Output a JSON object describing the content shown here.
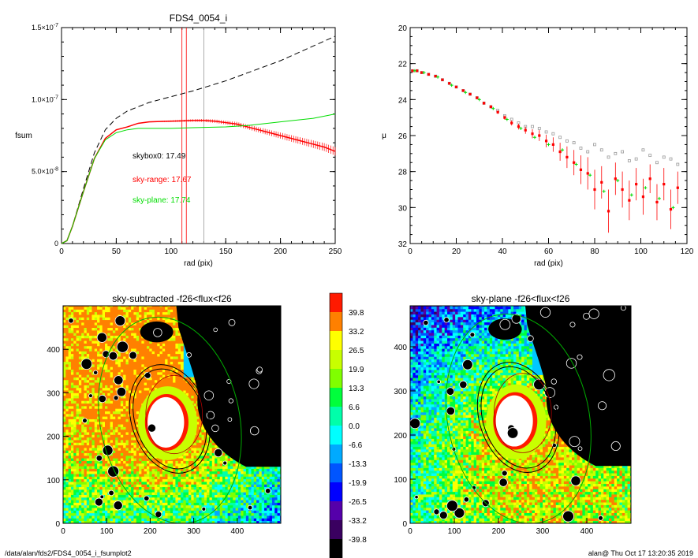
{
  "footer": {
    "left": "/data/alan/fds2/FDS4_0054_i_fsumplot2",
    "right": "alan@  Thu Oct 17 13:20:35 2019"
  },
  "colors": {
    "dashed": "#000000",
    "red": "#ff0000",
    "green": "#00dd00",
    "gray": "#999999"
  },
  "chart_data": [
    {
      "type": "line",
      "title": "FDS4_0054_i",
      "xlabel": "rad (pix)",
      "ylabel": "fsum",
      "xlim": [
        0,
        250
      ],
      "ylim": [
        0,
        1.5e-07
      ],
      "xticks": [
        "0",
        "50",
        "100",
        "150",
        "200",
        "250"
      ],
      "yticks": [
        {
          "mant": "0",
          "exp": ""
        },
        {
          "mant": "5.0×10",
          "exp": "-8"
        },
        {
          "mant": "1.0×10",
          "exp": "-7"
        },
        {
          "mant": "1.5×10",
          "exp": "-7"
        }
      ],
      "ytick_values": [
        0,
        5e-08,
        1e-07,
        1.5e-07
      ],
      "vlines": [
        {
          "x": 110,
          "color": "red"
        },
        {
          "x": 114,
          "color": "red"
        },
        {
          "x": 130,
          "color": "gray"
        }
      ],
      "annotations": [
        {
          "text": "skybox0: 17.49",
          "color": "black"
        },
        {
          "text": "sky-range: 17.67",
          "color": "red"
        },
        {
          "text": "sky-plane: 17.74",
          "color": "green"
        }
      ],
      "series": [
        {
          "style": "dashed",
          "color": "black",
          "x": [
            0,
            5,
            10,
            20,
            30,
            40,
            50,
            60,
            80,
            100,
            120,
            150,
            200,
            250
          ],
          "y": [
            0,
            2e-09,
            1.2e-08,
            3.8e-08,
            6.3e-08,
            7.9e-08,
            8.7e-08,
            9.2e-08,
            9.8e-08,
            1.02e-07,
            1.06e-07,
            1.13e-07,
            1.27e-07,
            1.44e-07
          ]
        },
        {
          "style": "errbar",
          "color": "red",
          "x": [
            0,
            5,
            10,
            20,
            30,
            40,
            50,
            60,
            70,
            80,
            90,
            100,
            110,
            120,
            130,
            140,
            150,
            160,
            170,
            180,
            190,
            200,
            210,
            220,
            230,
            240,
            250
          ],
          "y": [
            0,
            2e-09,
            1.2e-08,
            3.6e-08,
            5.9e-08,
            7.3e-08,
            7.9e-08,
            8.1e-08,
            8.35e-08,
            8.45e-08,
            8.48e-08,
            8.5e-08,
            8.52e-08,
            8.55e-08,
            8.55e-08,
            8.5e-08,
            8.4e-08,
            8.3e-08,
            8.1e-08,
            7.9e-08,
            7.7e-08,
            7.5e-08,
            7.3e-08,
            7.1e-08,
            6.9e-08,
            6.7e-08,
            6.4e-08
          ]
        },
        {
          "style": "solid",
          "color": "green",
          "x": [
            0,
            5,
            10,
            20,
            30,
            40,
            50,
            60,
            70,
            80,
            100,
            120,
            150,
            170,
            200,
            230,
            250
          ],
          "y": [
            0,
            2e-09,
            1.2e-08,
            3.6e-08,
            5.9e-08,
            7.2e-08,
            7.7e-08,
            7.9e-08,
            8e-08,
            8e-08,
            8e-08,
            8.05e-08,
            8.1e-08,
            8.2e-08,
            8.45e-08,
            8.7e-08,
            9e-08
          ]
        }
      ]
    },
    {
      "type": "scatter",
      "xlabel": "rad (pix)",
      "ylabel": "μ",
      "xlim": [
        0,
        120
      ],
      "ylim": [
        32,
        20
      ],
      "xticks": [
        "0",
        "20",
        "40",
        "60",
        "80",
        "100",
        "120"
      ],
      "yticks": [
        "20",
        "22",
        "24",
        "26",
        "28",
        "30",
        "32"
      ],
      "series": [
        {
          "marker": "square-open",
          "color": "gray",
          "x": [
            1,
            3,
            5,
            8,
            11,
            14,
            17,
            20,
            23,
            26,
            29,
            32,
            35,
            38,
            41,
            44,
            47,
            50,
            53,
            56,
            59,
            62,
            65,
            68,
            71,
            74,
            77,
            80,
            83,
            86,
            89,
            92,
            95,
            98,
            101,
            104,
            107,
            110,
            113,
            116
          ],
          "y": [
            22.4,
            22.4,
            22.5,
            22.6,
            22.7,
            22.9,
            23.1,
            23.3,
            23.5,
            23.7,
            23.9,
            24.2,
            24.4,
            24.6,
            24.9,
            25.1,
            25.3,
            25.5,
            25.5,
            25.6,
            25.8,
            25.9,
            26.1,
            26.3,
            26.4,
            26.7,
            26.9,
            26.5,
            26.8,
            27.2,
            27.0,
            26.9,
            27.4,
            27.3,
            26.8,
            27.1,
            27.5,
            27.2,
            27.3,
            27.6
          ]
        },
        {
          "marker": "square-filled",
          "color": "red",
          "errbar": true,
          "x": [
            1,
            3,
            5,
            8,
            11,
            14,
            17,
            20,
            23,
            26,
            29,
            32,
            35,
            38,
            41,
            44,
            47,
            50,
            53,
            56,
            59,
            62,
            65,
            68,
            71,
            74,
            77,
            80,
            83,
            86,
            89,
            92,
            95,
            98,
            101,
            104,
            107,
            110,
            113,
            116
          ],
          "y": [
            22.4,
            22.4,
            22.5,
            22.6,
            22.7,
            22.9,
            23.1,
            23.3,
            23.5,
            23.7,
            23.9,
            24.2,
            24.4,
            24.7,
            25.0,
            25.3,
            25.5,
            25.7,
            25.9,
            26.0,
            26.3,
            26.5,
            26.9,
            27.2,
            27.5,
            27.9,
            28.1,
            29.0,
            28.6,
            30.2,
            28.4,
            29.0,
            29.6,
            28.7,
            29.4,
            28.4,
            29.7,
            28.7,
            30.1,
            28.9
          ],
          "err": [
            0.02,
            0.02,
            0.03,
            0.03,
            0.03,
            0.04,
            0.04,
            0.05,
            0.05,
            0.06,
            0.07,
            0.08,
            0.09,
            0.1,
            0.12,
            0.14,
            0.16,
            0.2,
            0.25,
            0.3,
            0.35,
            0.4,
            0.5,
            0.6,
            0.7,
            0.8,
            0.9,
            1.1,
            0.9,
            1.2,
            0.9,
            1.0,
            1.1,
            0.9,
            1.0,
            0.8,
            1.0,
            0.9,
            1.1,
            0.9
          ]
        },
        {
          "marker": "cross",
          "color": "green",
          "x": [
            2,
            6,
            12,
            18,
            24,
            30,
            36,
            42,
            48,
            54,
            60,
            66,
            72,
            78,
            84,
            90,
            96,
            102,
            108,
            114
          ],
          "y": [
            22.4,
            22.5,
            22.75,
            23.2,
            23.6,
            24.0,
            24.5,
            25.1,
            25.6,
            26.1,
            26.5,
            26.8,
            27.6,
            28.2,
            29.1,
            28.5,
            29.3,
            28.9,
            29.5,
            30.0
          ]
        }
      ]
    },
    {
      "type": "heatmap",
      "title": "sky-subtracted -f26<flux<f26",
      "xlim": [
        0,
        500
      ],
      "ylim": [
        0,
        500
      ],
      "xticks": [
        "0",
        "100",
        "200",
        "300",
        "400"
      ],
      "yticks": [
        "0",
        "100",
        "200",
        "300",
        "400"
      ]
    },
    {
      "type": "heatmap",
      "title": "sky-plane -f26<flux<f26",
      "xlim": [
        0,
        500
      ],
      "ylim": [
        0,
        500
      ],
      "xticks": [
        "0",
        "100",
        "200",
        "300",
        "400"
      ],
      "yticks": [
        "0",
        "100",
        "200",
        "300",
        "400"
      ]
    }
  ],
  "colorbar": {
    "labels": [
      "39.8",
      "33.2",
      "26.5",
      "19.9",
      "13.3",
      "6.6",
      "0.0",
      "-6.6",
      "-13.3",
      "-19.9",
      "-26.5",
      "-33.2",
      "-39.8"
    ],
    "colors": [
      "#ff1a00",
      "#ff8000",
      "#ffff00",
      "#c8ff00",
      "#80ff00",
      "#00ff3c",
      "#00ffaa",
      "#00ffff",
      "#00aaff",
      "#0055ff",
      "#0000ff",
      "#5500aa",
      "#3a0060",
      "#000000"
    ]
  }
}
